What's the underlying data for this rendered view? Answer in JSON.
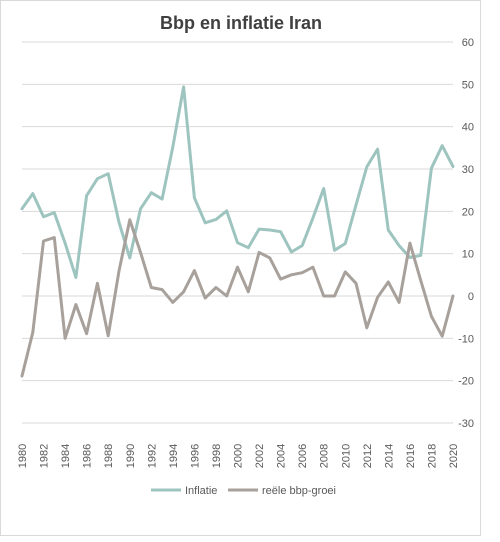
{
  "chart_data": {
    "type": "line",
    "title": "Bbp en inflatie Iran",
    "xlabel": "",
    "ylabel": "",
    "ylim": [
      -30,
      60
    ],
    "yticks": [
      -30,
      -20,
      -10,
      0,
      10,
      20,
      30,
      40,
      50,
      60
    ],
    "grid": true,
    "legend_position": "bottom",
    "x": [
      1980,
      1981,
      1982,
      1983,
      1984,
      1985,
      1986,
      1987,
      1988,
      1989,
      1990,
      1991,
      1992,
      1993,
      1994,
      1995,
      1996,
      1997,
      1998,
      1999,
      2000,
      2001,
      2002,
      2003,
      2004,
      2005,
      2006,
      2007,
      2008,
      2009,
      2010,
      2011,
      2012,
      2013,
      2014,
      2015,
      2016,
      2017,
      2018,
      2019,
      2020
    ],
    "xtick_labels": [
      "1980",
      "1982",
      "1984",
      "1986",
      "1988",
      "1990",
      "1992",
      "1994",
      "1996",
      "1998",
      "2000",
      "2002",
      "2004",
      "2006",
      "2008",
      "2010",
      "2012",
      "2014",
      "2016",
      "2018",
      "2020"
    ],
    "series": [
      {
        "name": "Inflatie",
        "color": "#9ec4bf",
        "values": [
          20.6,
          24.2,
          18.7,
          19.7,
          12.5,
          4.4,
          23.7,
          27.7,
          28.9,
          17.4,
          9.0,
          20.6,
          24.4,
          22.9,
          35.2,
          49.4,
          23.2,
          17.3,
          18.1,
          20.1,
          12.6,
          11.4,
          15.8,
          15.6,
          15.2,
          10.4,
          11.9,
          18.4,
          25.4,
          10.8,
          12.4,
          21.5,
          30.5,
          34.7,
          15.6,
          11.9,
          9.1,
          9.6,
          30.2,
          35.5,
          30.6
        ]
      },
      {
        "name": "reële bbp-groei",
        "color": "#a8a19b",
        "values": [
          -18.9,
          -8.6,
          13.0,
          13.8,
          -10.0,
          -2.0,
          -8.9,
          3.0,
          -9.4,
          5.9,
          18.0,
          10.3,
          2.0,
          1.5,
          -1.5,
          1.0,
          6.0,
          -0.5,
          2.0,
          0.0,
          6.8,
          1.0,
          10.3,
          9.0,
          4.0,
          5.0,
          5.5,
          6.8,
          0.0,
          0.0,
          5.7,
          3.0,
          -7.5,
          -0.3,
          3.3,
          -1.5,
          12.5,
          3.7,
          -4.8,
          -9.5,
          0.0
        ]
      }
    ]
  }
}
